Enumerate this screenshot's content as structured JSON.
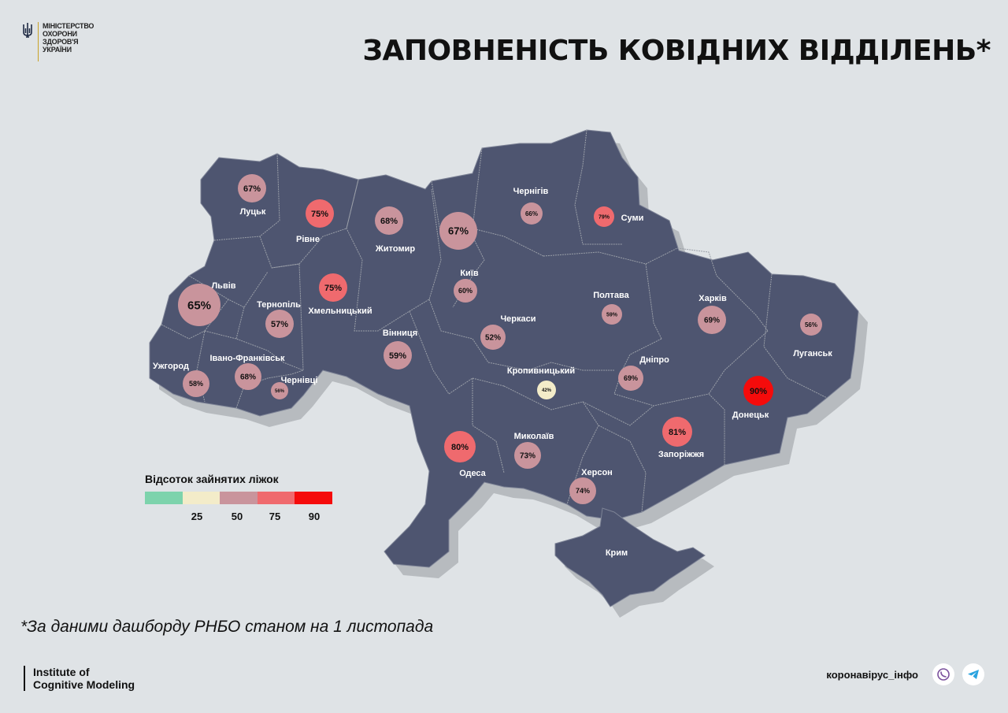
{
  "header": {
    "ministry_lines": [
      "МІНІСТЕРСТВО",
      "ОХОРОНИ",
      "ЗДОРОВ'Я",
      "УКРАЇНИ"
    ],
    "title": "ЗАПОВНЕНІСТЬ КОВІДНИХ ВІДДІЛЕНЬ*"
  },
  "colors": {
    "background": "#dfe3e6",
    "map_fill": "#4e5570",
    "map_shadow": "#b7bbbf",
    "border": "#9a9fa8"
  },
  "regions": [
    {
      "name": "Луцьк",
      "value": "67%",
      "level": "mid"
    },
    {
      "name": "Рівне",
      "value": "75%",
      "level": "high"
    },
    {
      "name": "Житомир",
      "value": "68%",
      "level": "mid"
    },
    {
      "name": "Київ",
      "value": "67%",
      "level": "mid"
    },
    {
      "name": "Київ",
      "value": "60%",
      "level": "mid"
    },
    {
      "name": "Чернігів",
      "value": "66%",
      "level": "mid"
    },
    {
      "name": "Суми",
      "value": "79%",
      "level": "high"
    },
    {
      "name": "Львів",
      "value": "65%",
      "level": "mid"
    },
    {
      "name": "Тернопіль",
      "value": "57%",
      "level": "mid"
    },
    {
      "name": "Хмельницький",
      "value": "75%",
      "level": "high"
    },
    {
      "name": "Вінниця",
      "value": "59%",
      "level": "mid"
    },
    {
      "name": "Черкаси",
      "value": "52%",
      "level": "mid"
    },
    {
      "name": "Полтава",
      "value": "59%",
      "level": "mid"
    },
    {
      "name": "Харків",
      "value": "69%",
      "level": "mid"
    },
    {
      "name": "Луганськ",
      "value": "56%",
      "level": "mid"
    },
    {
      "name": "Ужгород",
      "value": "58%",
      "level": "mid"
    },
    {
      "name": "Івано-Франківськ",
      "value": "68%",
      "level": "mid"
    },
    {
      "name": "Чернівці",
      "value": "56%",
      "level": "mid"
    },
    {
      "name": "Кропивницький",
      "value": "42%",
      "level": "low"
    },
    {
      "name": "Дніпро",
      "value": "69%",
      "level": "mid"
    },
    {
      "name": "Донецьк",
      "value": "90%",
      "level": "max"
    },
    {
      "name": "Запоріжжя",
      "value": "81%",
      "level": "high"
    },
    {
      "name": "Одеса",
      "value": "80%",
      "level": "high"
    },
    {
      "name": "Миколаїв",
      "value": "73%",
      "level": "mid"
    },
    {
      "name": "Херсон",
      "value": "74%",
      "level": "mid"
    },
    {
      "name": "Крим",
      "value": "",
      "level": "none"
    }
  ],
  "legend": {
    "title": "Відсоток зайнятих ліжок",
    "colors": [
      "#7dd3ac",
      "#f3ecc9",
      "#c9949c",
      "#ef6a6e",
      "#f50b0b"
    ],
    "ticks": [
      "25",
      "50",
      "75",
      "90"
    ]
  },
  "footer": {
    "note": "*За даними дашборду РНБО станом на 1 листопада",
    "institute_line1": "Institute of",
    "institute_line2": "Cognitive Modeling",
    "handle": "коронавірус_інфо",
    "icons": [
      "viber-icon",
      "telegram-icon"
    ]
  }
}
